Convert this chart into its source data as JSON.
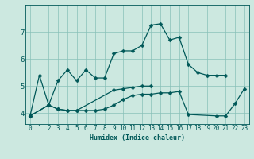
{
  "xlabel": "Humidex (Indice chaleur)",
  "background_color": "#cce8e0",
  "grid_color": "#88c0b8",
  "line_color": "#005858",
  "xlim": [
    -0.5,
    23.5
  ],
  "ylim": [
    3.6,
    8.0
  ],
  "yticks": [
    4,
    5,
    6,
    7
  ],
  "xticks": [
    0,
    1,
    2,
    3,
    4,
    5,
    6,
    7,
    8,
    9,
    10,
    11,
    12,
    13,
    14,
    15,
    16,
    17,
    18,
    19,
    20,
    21,
    22,
    23
  ],
  "series": [
    {
      "x": [
        0,
        1,
        2,
        3,
        4,
        5,
        6,
        7,
        8,
        9,
        10,
        11,
        12,
        13,
        14,
        15,
        16,
        17,
        18,
        19,
        20,
        21
      ],
      "y": [
        3.9,
        5.4,
        4.3,
        5.2,
        5.6,
        5.2,
        5.6,
        5.3,
        5.3,
        6.2,
        6.3,
        6.3,
        6.5,
        7.25,
        7.3,
        6.7,
        6.8,
        5.8,
        5.5,
        5.4,
        5.4,
        5.4
      ]
    },
    {
      "x": [
        0,
        2,
        3,
        4,
        5,
        6,
        7,
        8,
        9,
        10,
        11,
        12,
        13,
        14,
        15,
        16,
        17,
        20,
        21,
        22,
        23
      ],
      "y": [
        3.9,
        4.3,
        4.15,
        4.1,
        4.1,
        4.1,
        4.1,
        4.15,
        4.3,
        4.5,
        4.65,
        4.7,
        4.7,
        4.75,
        4.75,
        4.8,
        3.95,
        3.9,
        3.9,
        4.35,
        4.9
      ]
    },
    {
      "x": [
        0,
        2,
        3,
        4,
        5,
        9,
        10,
        11,
        12,
        13
      ],
      "y": [
        3.9,
        4.3,
        4.15,
        4.1,
        4.1,
        4.85,
        4.9,
        4.95,
        5.0,
        5.0
      ]
    }
  ],
  "marker_size": 2.5,
  "linewidth": 0.9,
  "xlabel_fontsize": 6,
  "tick_fontsize": 5.5
}
